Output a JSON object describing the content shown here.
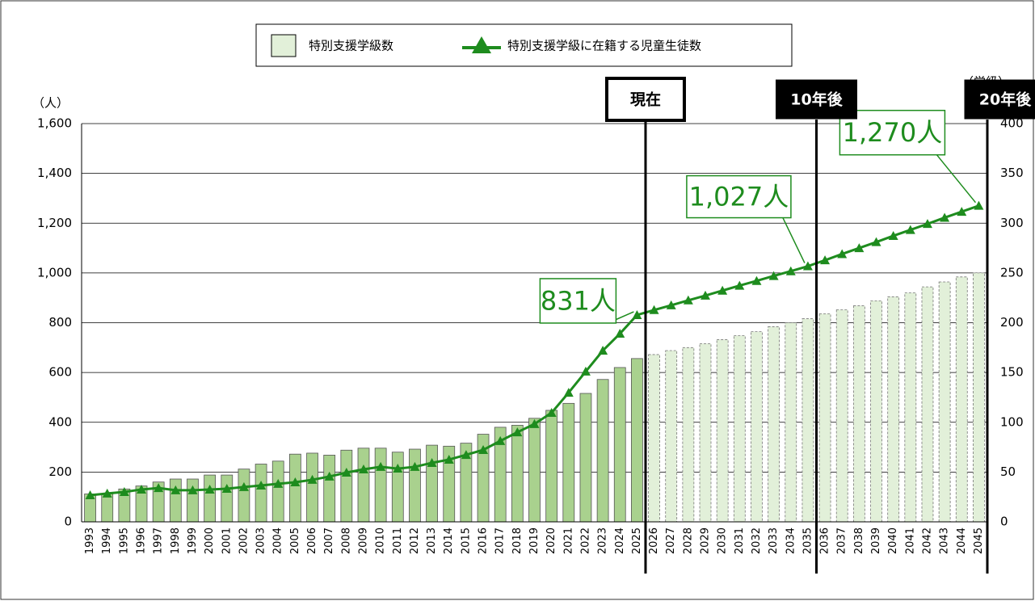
{
  "chart_data": {
    "type": "bar_line",
    "categories": [
      "1993",
      "1994",
      "1995",
      "1996",
      "1997",
      "1998",
      "1999",
      "2000",
      "2001",
      "2002",
      "2003",
      "2004",
      "2005",
      "2006",
      "2007",
      "2008",
      "2009",
      "2010",
      "2011",
      "2012",
      "2013",
      "2014",
      "2015",
      "2016",
      "2017",
      "2018",
      "2019",
      "2020",
      "2021",
      "2022",
      "2023",
      "2024",
      "2025",
      "2026",
      "2027",
      "2028",
      "2029",
      "2030",
      "2031",
      "2032",
      "2033",
      "2034",
      "2035",
      "2036",
      "2037",
      "2038",
      "2039",
      "2040",
      "2041",
      "2042",
      "2043",
      "2044",
      "2045"
    ],
    "series": [
      {
        "name": "特別支援学級数",
        "type": "bar",
        "axis": "y2",
        "color": "#a9d18e",
        "forecast_color": "#e2f0d9",
        "values": [
          28,
          28,
          33,
          36,
          40,
          43,
          43,
          47,
          47,
          53,
          58,
          61,
          68,
          69,
          67,
          72,
          74,
          74,
          70,
          73,
          77,
          76,
          79,
          88,
          95,
          97,
          104,
          112,
          119,
          129,
          143,
          155,
          164,
          168,
          172,
          175,
          179,
          183,
          187,
          191,
          196,
          200,
          204,
          209,
          213,
          217,
          222,
          226,
          230,
          236,
          241,
          246,
          250
        ]
      },
      {
        "name": "特別支援学級に在籍する児童生徒数",
        "type": "line",
        "axis": "y",
        "color": "#1e8c1e",
        "values": [
          107,
          114,
          120,
          130,
          136,
          127,
          127,
          130,
          133,
          140,
          146,
          153,
          159,
          169,
          182,
          198,
          211,
          221,
          214,
          221,
          237,
          250,
          269,
          289,
          325,
          360,
          393,
          438,
          519,
          604,
          688,
          756,
          831,
          851,
          870,
          890,
          909,
          929,
          949,
          968,
          988,
          1007,
          1027,
          1051,
          1076,
          1100,
          1124,
          1149,
          1173,
          1197,
          1222,
          1246,
          1270
        ],
        "value_labels": [
          null,
          null,
          null,
          null,
          null,
          null,
          null,
          null,
          null,
          null,
          null,
          null,
          null,
          null,
          null,
          null,
          null,
          null,
          null,
          null,
          null,
          null,
          null,
          null,
          null,
          null,
          null,
          null,
          null,
          null,
          null,
          null,
          "831人",
          null,
          null,
          null,
          null,
          null,
          null,
          null,
          null,
          null,
          "1,027人",
          null,
          null,
          null,
          null,
          null,
          null,
          null,
          null,
          null,
          "1,270人"
        ]
      }
    ],
    "y_label": "（人）",
    "y2_label": "（学級）",
    "ylim": [
      0,
      1600
    ],
    "yticks": [
      0,
      200,
      400,
      600,
      800,
      {
        "value": 1000,
        "label": "1,000"
      },
      {
        "value": 1200,
        "label": "1,200"
      },
      {
        "value": 1400,
        "label": "1,400"
      },
      {
        "value": 1600,
        "label": "1,600"
      }
    ],
    "y2lim": [
      0,
      400
    ],
    "y2ticks": [
      0,
      50,
      100,
      150,
      200,
      250,
      300,
      350,
      400
    ],
    "grid": true,
    "legend": "top",
    "markers": [
      {
        "label": "現在",
        "x": "2025"
      },
      {
        "label": "10年後",
        "x": "2035"
      },
      {
        "label": "20年後",
        "x": "2045"
      }
    ]
  }
}
